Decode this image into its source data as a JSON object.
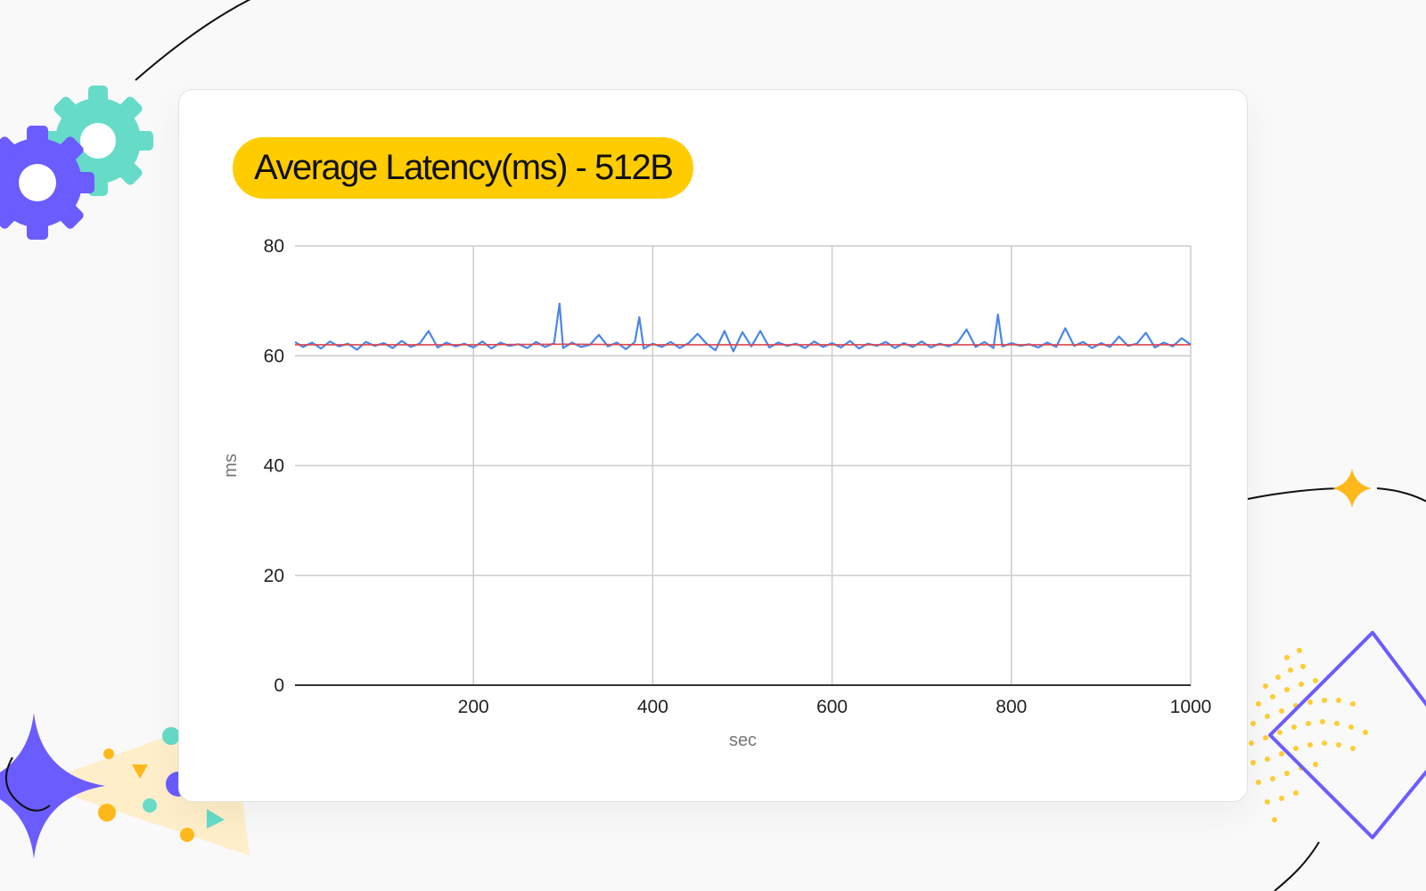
{
  "card": {
    "title": "Average Latency(ms) - 512B"
  },
  "colors": {
    "title_pill": "#ffcc00",
    "series_avg": "#4a86e8",
    "series_trend": "#e0464e",
    "gear_teal": "#66dcc8",
    "gear_purple": "#6b5cff",
    "accent_orange": "#ffb81c"
  },
  "decor": {
    "icons": [
      "gears-icon",
      "sparkle-star-icon",
      "diamond-outline-icon",
      "dotted-wave-icon",
      "confetti-icon"
    ]
  },
  "chart_data": {
    "type": "line",
    "title": "Average Latency(ms) - 512B",
    "xlabel": "sec",
    "ylabel": "ms",
    "xlim": [
      1,
      1000
    ],
    "ylim": [
      0,
      80
    ],
    "x_ticks": [
      200,
      400,
      600,
      800,
      1000
    ],
    "y_ticks": [
      0,
      20,
      40,
      60,
      80
    ],
    "grid": true,
    "legend": "none",
    "series": [
      {
        "type": "line",
        "color": "#4a86e8",
        "sample_every_sec": 10,
        "x": [
          1,
          10,
          20,
          30,
          40,
          50,
          60,
          70,
          80,
          90,
          100,
          110,
          120,
          130,
          140,
          150,
          160,
          170,
          180,
          190,
          200,
          210,
          220,
          230,
          240,
          250,
          260,
          270,
          280,
          290,
          296,
          300,
          310,
          320,
          330,
          340,
          350,
          360,
          370,
          380,
          385,
          390,
          400,
          410,
          420,
          430,
          440,
          450,
          460,
          470,
          480,
          490,
          500,
          510,
          520,
          530,
          540,
          550,
          560,
          570,
          580,
          590,
          600,
          610,
          620,
          630,
          640,
          650,
          660,
          670,
          680,
          690,
          700,
          710,
          720,
          730,
          740,
          750,
          760,
          770,
          780,
          785,
          790,
          800,
          810,
          820,
          830,
          840,
          850,
          860,
          870,
          880,
          890,
          900,
          910,
          920,
          930,
          940,
          950,
          960,
          970,
          980,
          990,
          1000
        ],
        "values": [
          62.5,
          61.6,
          62.4,
          61.3,
          62.6,
          61.7,
          62.2,
          61.1,
          62.5,
          61.8,
          62.3,
          61.4,
          62.7,
          61.6,
          62.2,
          64.5,
          61.5,
          62.4,
          61.7,
          62.2,
          61.5,
          62.6,
          61.3,
          62.4,
          61.8,
          62.1,
          61.4,
          62.5,
          61.6,
          62.3,
          69.5,
          61.4,
          62.4,
          61.6,
          62.0,
          63.8,
          61.7,
          62.4,
          61.2,
          62.5,
          67.0,
          61.3,
          62.2,
          61.6,
          62.5,
          61.4,
          62.3,
          64.0,
          62.2,
          61.0,
          64.5,
          60.8,
          64.3,
          61.7,
          64.5,
          61.5,
          62.4,
          61.8,
          62.2,
          61.4,
          62.6,
          61.6,
          62.3,
          61.5,
          62.7,
          61.3,
          62.2,
          61.8,
          62.5,
          61.4,
          62.3,
          61.6,
          62.6,
          61.5,
          62.2,
          61.7,
          62.4,
          64.8,
          61.6,
          62.5,
          61.4,
          67.5,
          61.7,
          62.3,
          61.8,
          62.1,
          61.5,
          62.4,
          61.6,
          65.0,
          61.8,
          62.5,
          61.4,
          62.3,
          61.6,
          63.5,
          61.8,
          62.2,
          64.2,
          61.5,
          62.4,
          61.7,
          63.2,
          62.0
        ]
      },
      {
        "type": "line",
        "color": "#e0464e",
        "x": [
          1,
          100,
          200,
          300,
          400,
          500,
          600,
          700,
          800,
          900,
          1000
        ],
        "values": [
          62.0,
          62.0,
          62.0,
          62.1,
          62.0,
          62.0,
          62.0,
          62.0,
          62.0,
          62.0,
          62.0
        ]
      }
    ]
  }
}
